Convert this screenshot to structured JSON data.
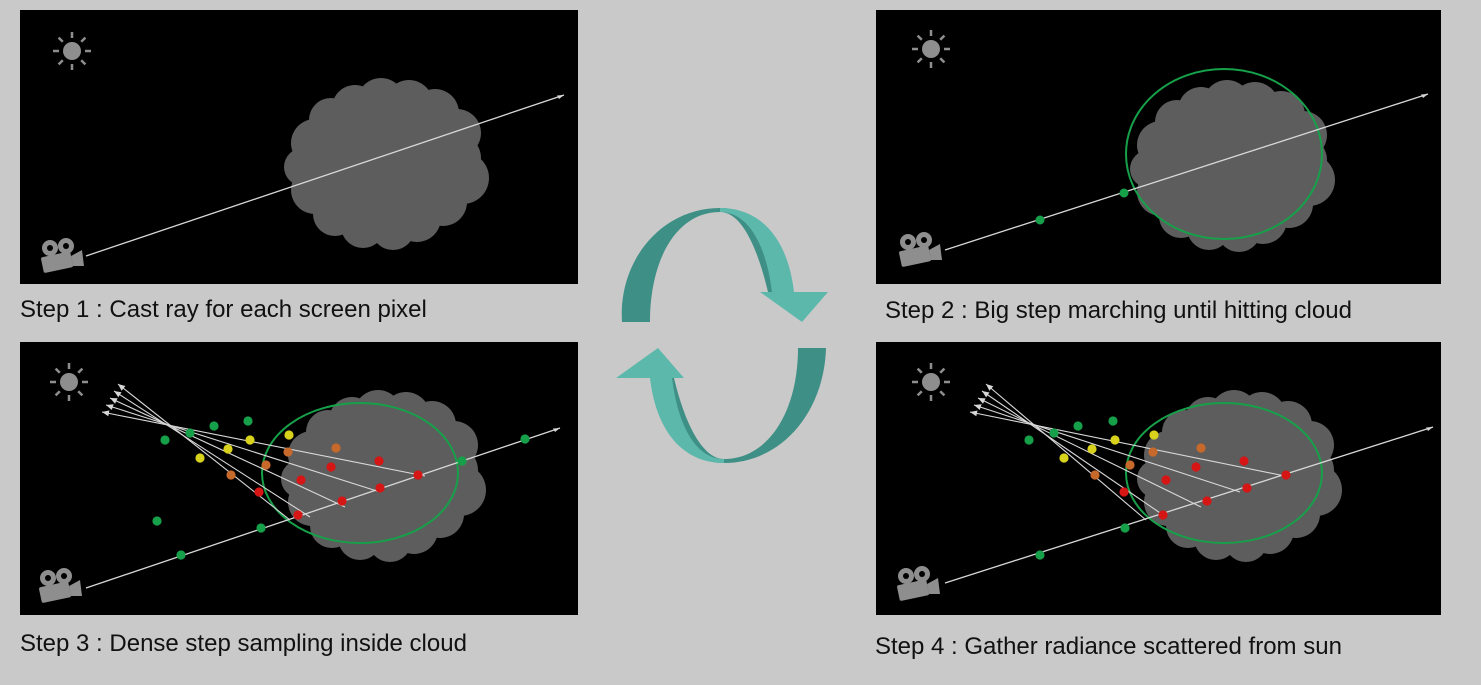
{
  "colors": {
    "background": "#c9c9c9",
    "panel": "#000000",
    "cloud": "#5d5d5d",
    "ray": "#d8d8d8",
    "boundary": "#17a04a",
    "sample_green": "#17a04a",
    "sample_yellow": "#d8d21c",
    "sample_orange": "#c8692c",
    "sample_red": "#d61515",
    "cycle_light": "#5db8ac",
    "cycle_dark": "#3e8f85",
    "sun": "#8e8e8e",
    "camera": "#8e8e8e"
  },
  "icons": {
    "sun": "sun-icon",
    "camera": "camera-icon",
    "cycle": "cycle-arrows-icon"
  },
  "steps": [
    {
      "caption": "Step 1 : Cast ray for each screen pixel"
    },
    {
      "caption": "Step 2 : Big step marching until hitting cloud"
    },
    {
      "caption": "Step 3 : Dense step sampling inside cloud"
    },
    {
      "caption": "Step 4 : Gather radiance scattered from sun"
    }
  ]
}
